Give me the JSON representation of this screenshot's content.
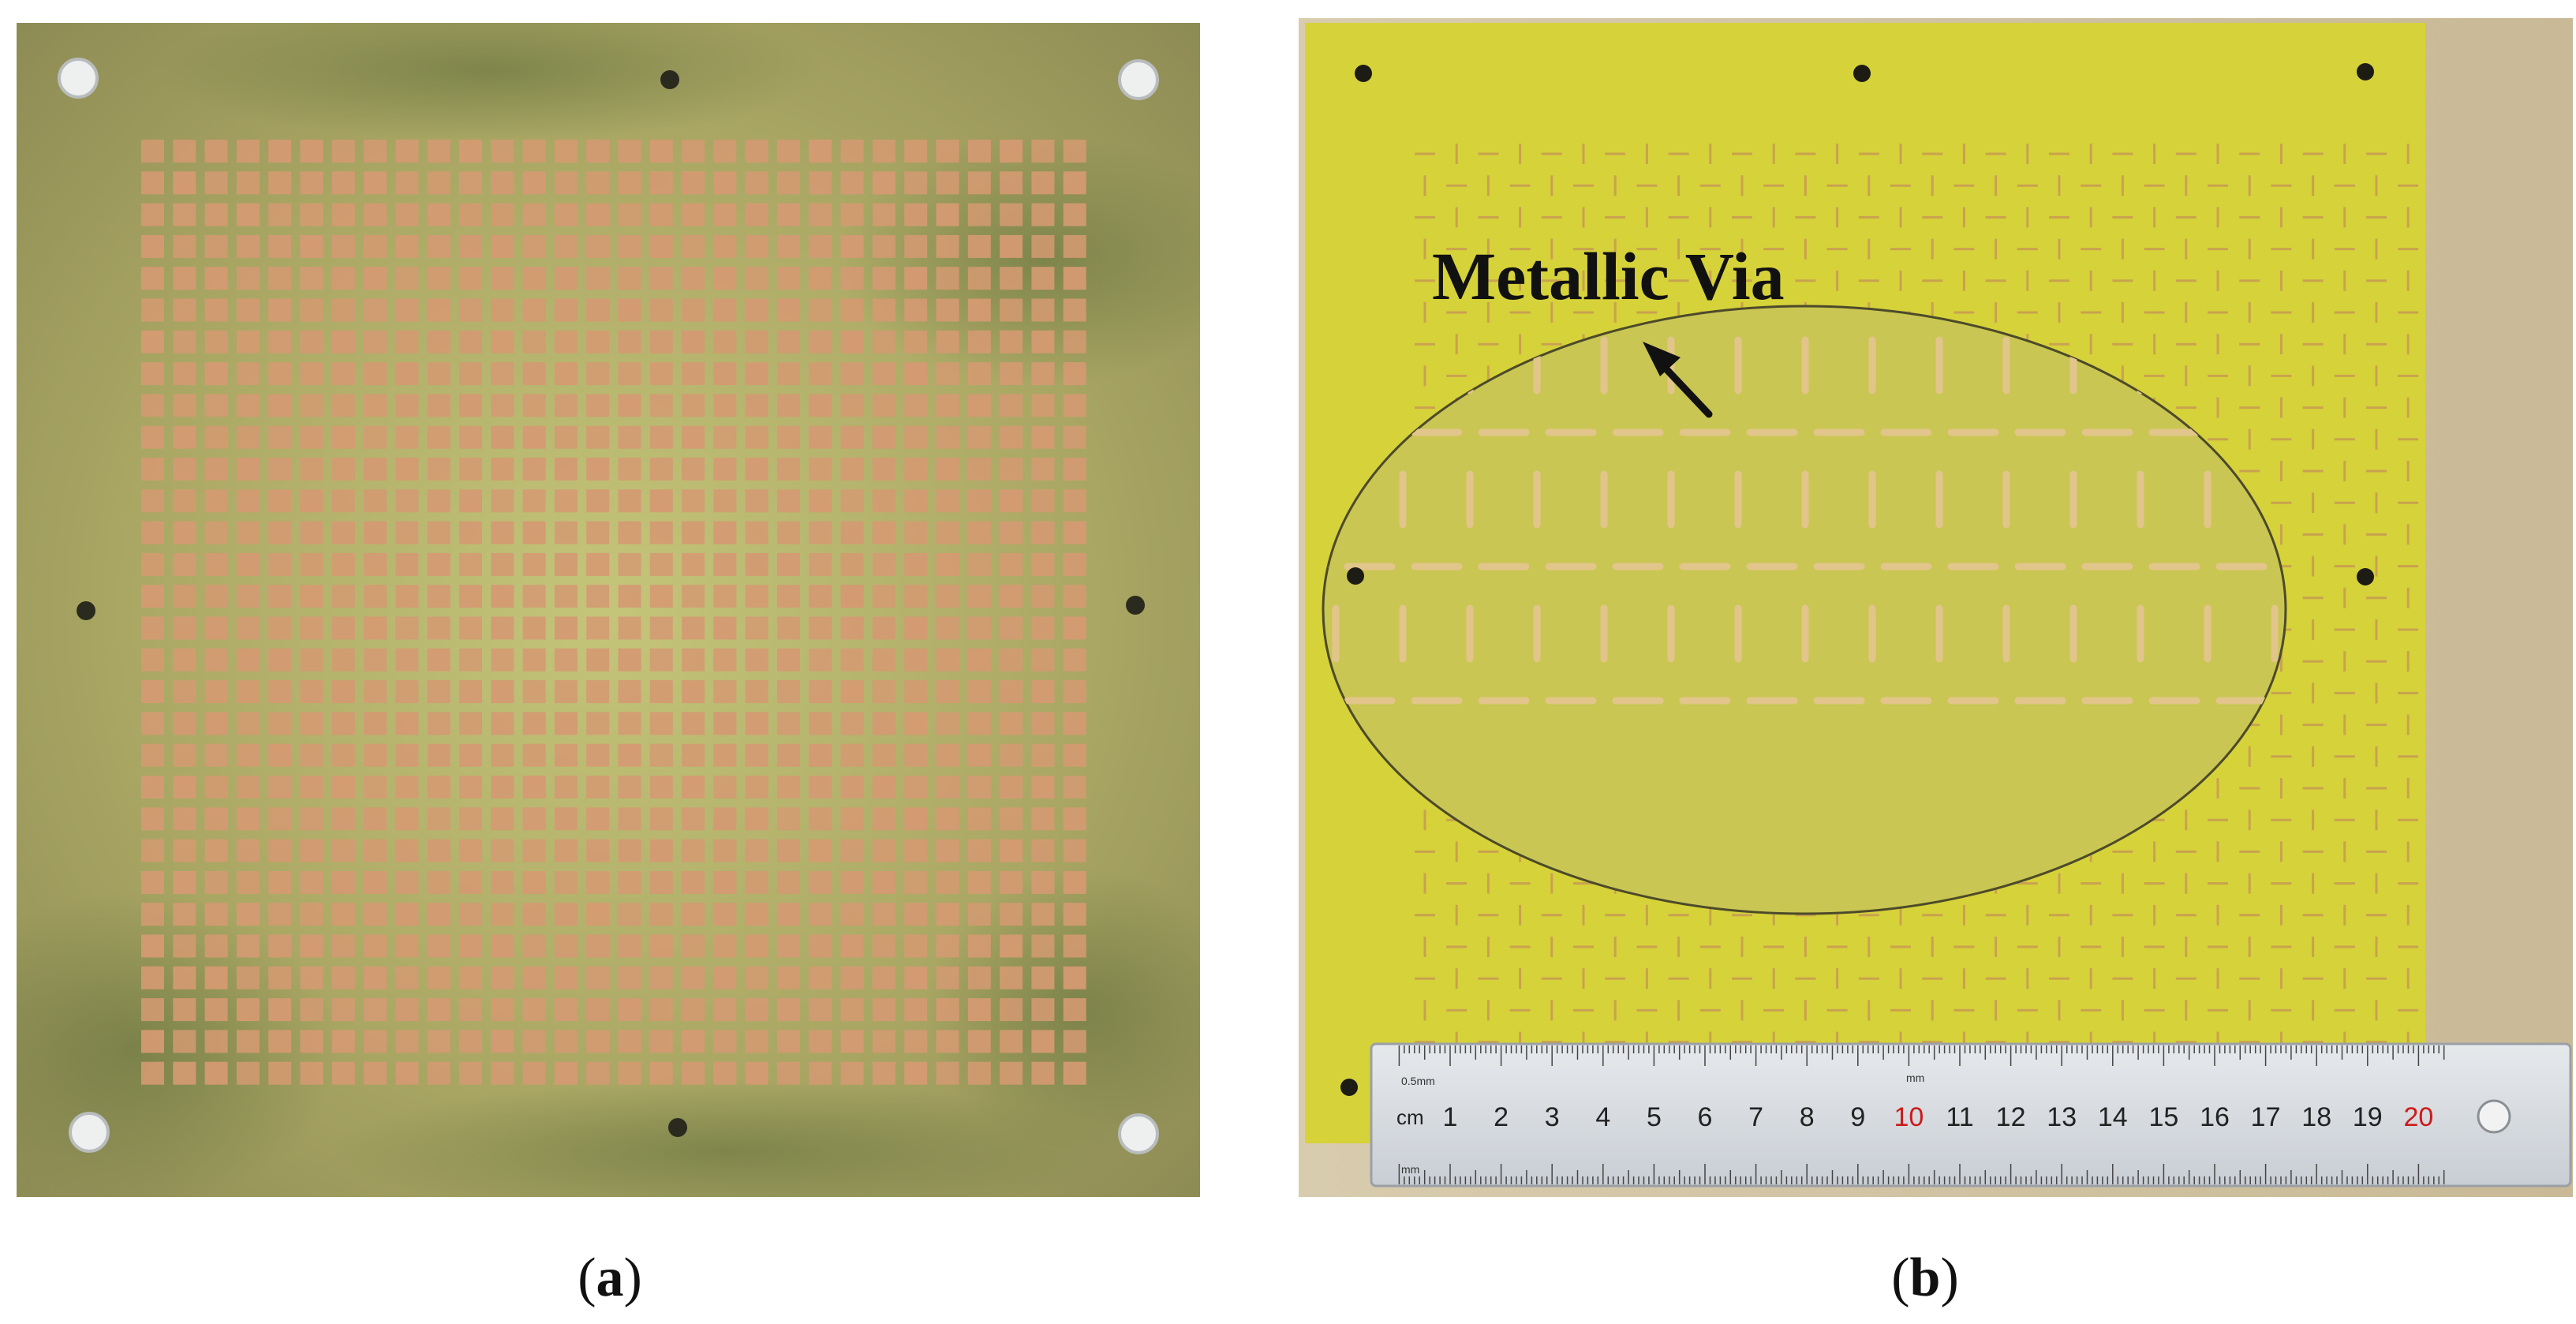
{
  "figure": {
    "panel_a": {
      "caption_open": "(",
      "caption_letter": "a",
      "caption_close": ")"
    },
    "panel_b": {
      "caption_open": "(",
      "caption_letter": "b",
      "caption_close": ")",
      "annotation": "Metallic Via",
      "ruler": {
        "unit_cm": "cm",
        "unit_mm": "mm",
        "precision": "0.5mm",
        "numbers": [
          "1",
          "2",
          "3",
          "4",
          "5",
          "6",
          "7",
          "8",
          "9",
          "10",
          "11",
          "12",
          "13",
          "14",
          "15",
          "16",
          "17",
          "18",
          "19",
          "20"
        ],
        "highlight_numbers": [
          "10",
          "20"
        ]
      }
    }
  },
  "colors": {
    "board_a": "#b5b16f",
    "board_b": "#d6d23a",
    "copper": "#d49a72",
    "gap": "#7f8a3e",
    "ruler_body": "#d9dde2",
    "ruler_red": "#cc1a1a"
  }
}
